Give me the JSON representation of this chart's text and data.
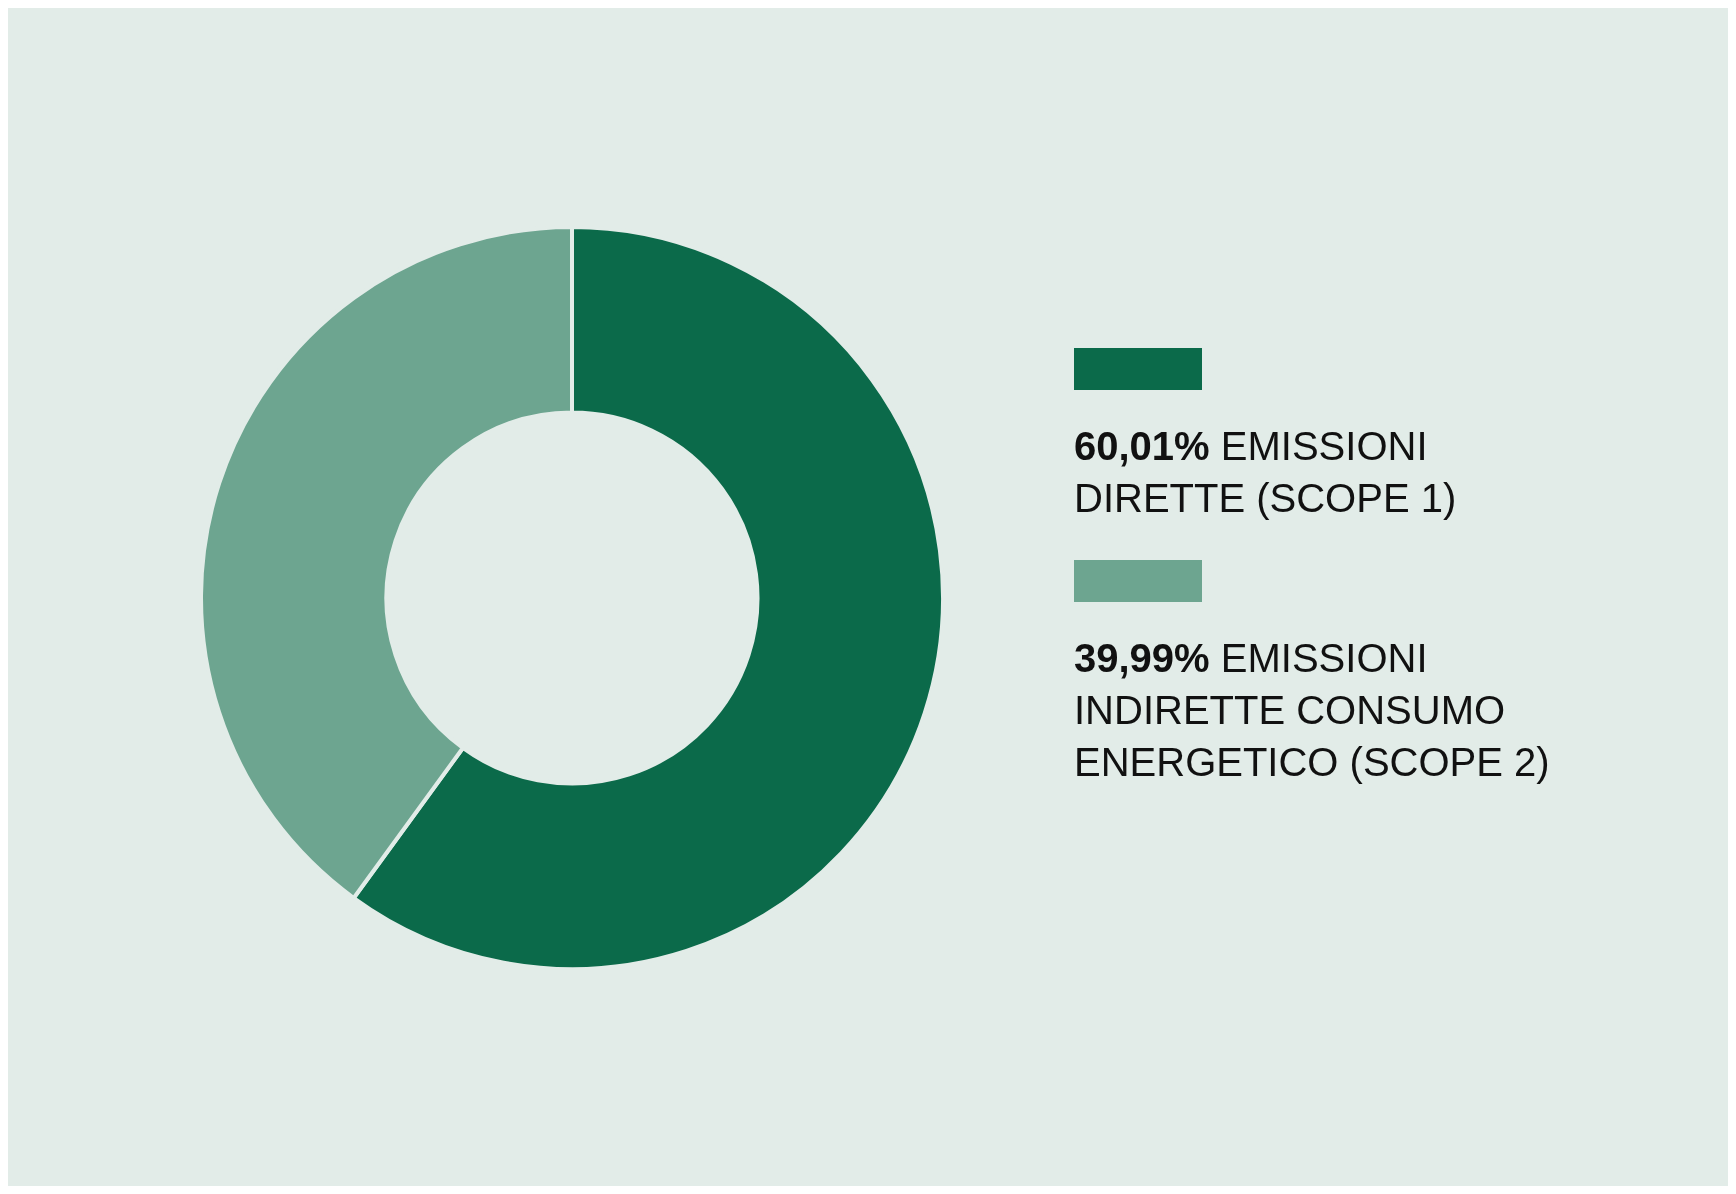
{
  "chart_data": {
    "type": "donut",
    "categories": [
      "EMISSIONI DIRETTE (SCOPE 1)",
      "EMISSIONI INDIRETTE CONSUMO ENERGETICO (SCOPE 2)"
    ],
    "values": [
      60.01,
      39.99
    ],
    "colors": [
      "#0b6a4a",
      "#6da590"
    ],
    "value_labels": [
      "60,01%",
      "39,99%"
    ],
    "legend": "right"
  }
}
